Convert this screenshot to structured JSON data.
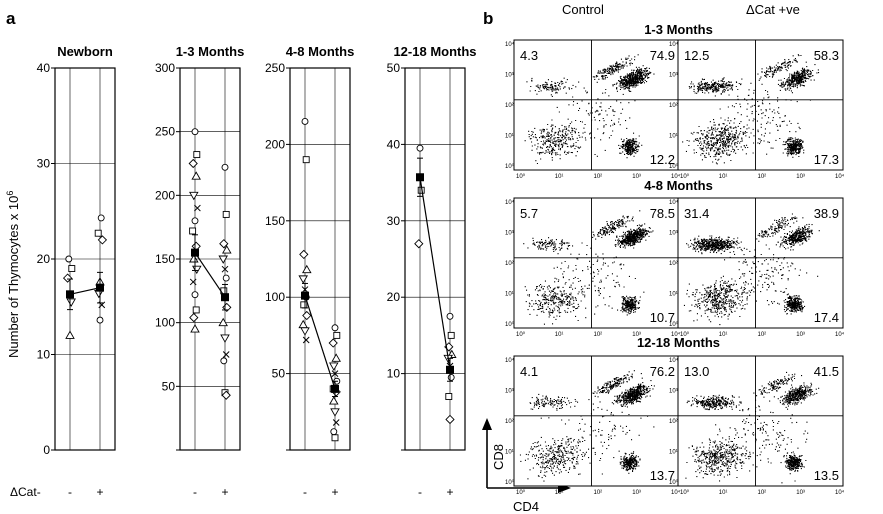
{
  "figure": {
    "panel_a_label": "a",
    "panel_b_label": "b",
    "y_axis_label": "Number of Thymocytes x 10",
    "y_axis_label_exp": "6",
    "x_row_label": "ΔCat-",
    "x_minus": "-",
    "x_plus": "+",
    "col_control": "Control",
    "col_dcat": "ΔCat +ve",
    "axis_cd8": "CD8",
    "axis_cd4": "CD4",
    "facs_tick_labels": [
      "10⁰",
      "10¹",
      "10²",
      "10³",
      "10⁴"
    ]
  },
  "chart_data": [
    {
      "type": "scatter",
      "title": "Newborn",
      "ylabel": "Number of Thymocytes x 10^6",
      "ylim": [
        0,
        40
      ],
      "yticks": [
        "0",
        "10",
        "20",
        "30",
        "40"
      ],
      "categories": [
        "-",
        "+"
      ],
      "series": [
        {
          "values": [
            [
              -0.02,
              20
            ],
            [
              0.03,
              19
            ],
            [
              -0.04,
              18
            ],
            [
              0.0,
              12
            ],
            [
              0.02,
              15.5
            ]
          ]
        },
        {
          "values": [
            [
              0.02,
              24.3
            ],
            [
              -0.03,
              22.7
            ],
            [
              0.04,
              22
            ],
            [
              0.0,
              17.6
            ],
            [
              -0.02,
              16.4
            ],
            [
              0.03,
              15.2
            ],
            [
              0.0,
              13.6
            ]
          ]
        }
      ],
      "means": [
        16.3,
        17.0
      ],
      "sem": [
        1.6,
        1.6
      ],
      "grid": true
    },
    {
      "type": "scatter",
      "title": "1-3 Months",
      "ylim": [
        0,
        300
      ],
      "yticks": [
        "50",
        "100",
        "150",
        "200",
        "250",
        "300"
      ],
      "categories": [
        "-",
        "+"
      ],
      "series": [
        {
          "values": [
            [
              0.0,
              250
            ],
            [
              0.03,
              232
            ],
            [
              -0.03,
              225
            ],
            [
              0.02,
              215
            ],
            [
              -0.02,
              200
            ],
            [
              0.04,
              190
            ],
            [
              0.0,
              180
            ],
            [
              -0.04,
              172
            ],
            [
              0.02,
              160
            ],
            [
              -0.02,
              150
            ],
            [
              0.03,
              142
            ],
            [
              -0.03,
              132
            ],
            [
              0.0,
              122
            ],
            [
              0.02,
              110
            ],
            [
              -0.02,
              104
            ],
            [
              0.0,
              95
            ]
          ]
        },
        {
          "values": [
            [
              0.0,
              222
            ],
            [
              0.02,
              185
            ],
            [
              -0.02,
              162
            ],
            [
              0.03,
              157
            ],
            [
              -0.03,
              150
            ],
            [
              0.0,
              142
            ],
            [
              0.02,
              135
            ],
            [
              -0.02,
              125
            ],
            [
              0.03,
              112
            ],
            [
              -0.03,
              100
            ],
            [
              0.0,
              88
            ],
            [
              0.02,
              75
            ],
            [
              -0.02,
              70
            ],
            [
              0.0,
              45
            ],
            [
              0.02,
              43
            ]
          ]
        }
      ],
      "means": [
        155,
        120
      ],
      "sem": [
        14,
        10
      ],
      "grid": true
    },
    {
      "type": "scatter",
      "title": "4-8 Months",
      "ylim": [
        0,
        250
      ],
      "yticks": [
        "50",
        "100",
        "150",
        "200",
        "250"
      ],
      "categories": [
        "-",
        "+"
      ],
      "series": [
        {
          "values": [
            [
              0.0,
              215
            ],
            [
              0.02,
              190
            ],
            [
              -0.02,
              128
            ],
            [
              0.03,
              118
            ],
            [
              -0.03,
              112
            ],
            [
              0.0,
              105
            ],
            [
              0.02,
              100
            ],
            [
              -0.02,
              95
            ],
            [
              0.03,
              88
            ],
            [
              -0.03,
              82
            ],
            [
              0.0,
              78
            ],
            [
              0.02,
              72
            ]
          ]
        },
        {
          "values": [
            [
              0.0,
              80
            ],
            [
              0.03,
              75
            ],
            [
              -0.03,
              70
            ],
            [
              0.02,
              60
            ],
            [
              -0.02,
              55
            ],
            [
              0.0,
              50
            ],
            [
              0.03,
              45
            ],
            [
              -0.03,
              40
            ],
            [
              0.02,
              38
            ],
            [
              -0.02,
              32
            ],
            [
              0.0,
              25
            ],
            [
              0.02,
              18
            ],
            [
              -0.02,
              12
            ],
            [
              0.0,
              8
            ]
          ]
        }
      ],
      "means": [
        101,
        40
      ],
      "sem": [
        8,
        5
      ],
      "grid": true
    },
    {
      "type": "scatter",
      "title": "12-18 Months",
      "ylim": [
        0,
        50
      ],
      "yticks": [
        "10",
        "20",
        "30",
        "40",
        "50"
      ],
      "categories": [
        "-",
        "+"
      ],
      "series": [
        {
          "values": [
            [
              0.0,
              39.5
            ],
            [
              0.02,
              34
            ],
            [
              -0.02,
              27
            ]
          ]
        },
        {
          "values": [
            [
              0.0,
              17.5
            ],
            [
              0.02,
              15
            ],
            [
              -0.02,
              13.5
            ],
            [
              0.03,
              12.5
            ],
            [
              -0.03,
              12
            ],
            [
              0.0,
              11
            ],
            [
              0.02,
              9.5
            ],
            [
              -0.02,
              7
            ],
            [
              0.0,
              4
            ]
          ]
        }
      ],
      "means": [
        35.7,
        10.5
      ],
      "sem": [
        2.5,
        1.5
      ],
      "grid": true
    }
  ],
  "facs": {
    "rows": [
      {
        "title": "1-3 Months",
        "control": [
          "4.3",
          "74.9",
          "12.2"
        ],
        "dcat": [
          "12.5",
          "58.3",
          "17.3"
        ]
      },
      {
        "title": "4-8 Months",
        "control": [
          "5.7",
          "78.5",
          "10.7"
        ],
        "dcat": [
          "31.4",
          "38.9",
          "17.4"
        ]
      },
      {
        "title": "12-18 Months",
        "control": [
          "4.1",
          "76.2",
          "13.7"
        ],
        "dcat": [
          "13.0",
          "41.5",
          "13.5"
        ]
      }
    ]
  }
}
